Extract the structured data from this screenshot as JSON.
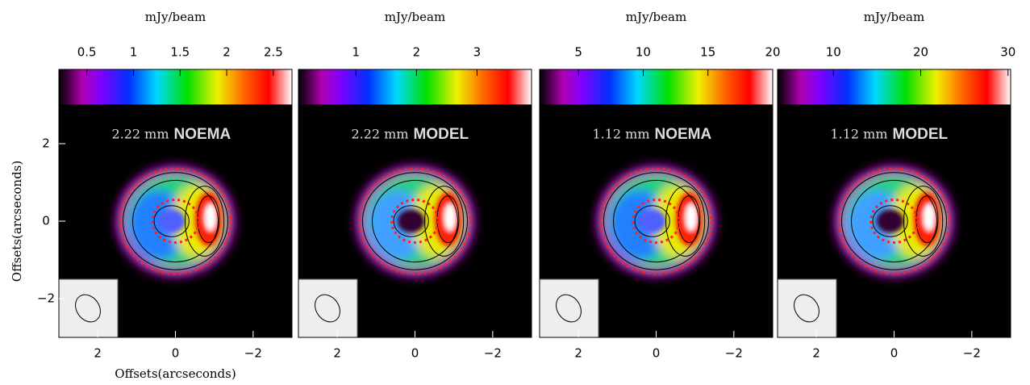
{
  "chart_data": [
    {
      "type": "image",
      "colorbar_label": "mJy/beam",
      "wavelength": "2.22 mm",
      "instrument": "NOEMA",
      "xlabel": "Offsets(arcseconds)",
      "ylabel": "Offsets(arcseconds)",
      "clim": [
        0.2,
        2.7
      ],
      "cticks": [
        0.5,
        1,
        1.5,
        2,
        2.5
      ],
      "xlim": [
        3,
        -3
      ],
      "xticks": [
        2,
        0,
        {
          "value": -2,
          "label": "−2"
        }
      ],
      "ylim": [
        -3,
        3
      ],
      "yticks": [
        {
          "value": -2,
          "label": "−2"
        },
        0,
        2
      ]
    },
    {
      "type": "image",
      "colorbar_label": "mJy/beam",
      "wavelength": "2.22 mm",
      "instrument": "MODEL",
      "clim": [
        0.05,
        3.9
      ],
      "cticks": [
        1,
        2,
        3
      ],
      "xlim": [
        3,
        -3
      ],
      "xticks": [
        2,
        0,
        {
          "value": -2,
          "label": "−2"
        }
      ],
      "ylim": [
        -3,
        3
      ]
    },
    {
      "type": "image",
      "colorbar_label": "mJy/beam",
      "wavelength": "1.12 mm",
      "instrument": "NOEMA",
      "clim": [
        2,
        20
      ],
      "cticks": [
        5,
        10,
        15,
        20
      ],
      "xlim": [
        3,
        -3
      ],
      "xticks": [
        2,
        0,
        {
          "value": -2,
          "label": "−2"
        }
      ],
      "ylim": [
        -3,
        3
      ]
    },
    {
      "type": "image",
      "colorbar_label": "mJy/beam",
      "wavelength": "1.12 mm",
      "instrument": "MODEL",
      "clim": [
        3.6,
        30.3
      ],
      "cticks": [
        10,
        20,
        30
      ],
      "xlim": [
        3,
        -3
      ],
      "xticks": [
        2,
        0,
        {
          "value": -2,
          "label": "−2"
        }
      ],
      "ylim": [
        -3,
        3
      ]
    }
  ]
}
